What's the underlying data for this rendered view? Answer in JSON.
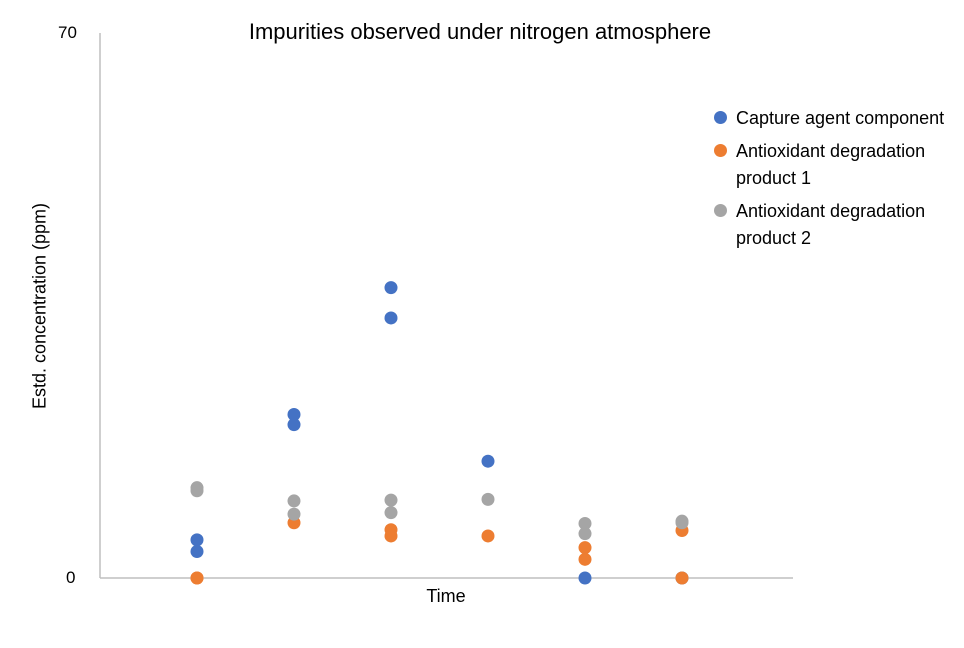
{
  "chart_data": {
    "type": "scatter",
    "title": "Impurities observed under nitrogen atmosphere",
    "xlabel": "Time",
    "ylabel": "Estd. concentration (ppm)",
    "ylim": [
      0,
      70
    ],
    "yticks": [
      "0",
      "70"
    ],
    "x_categories": 6,
    "legend_position": "right",
    "grid": false,
    "series": [
      {
        "name": "Capture agent component",
        "color": "#4472C4",
        "points": [
          [
            1,
            4.9
          ],
          [
            1,
            3.4
          ],
          [
            2,
            21.0
          ],
          [
            2,
            19.7
          ],
          [
            3,
            37.3
          ],
          [
            3,
            33.4
          ],
          [
            4,
            15.0
          ],
          [
            5,
            0
          ],
          [
            6,
            0
          ]
        ]
      },
      {
        "name": "Antioxidant degradation product 1",
        "color": "#ED7D31",
        "points": [
          [
            1,
            0
          ],
          [
            1,
            0
          ],
          [
            2,
            7.1
          ],
          [
            3,
            6.2
          ],
          [
            3,
            5.4
          ],
          [
            4,
            5.4
          ],
          [
            5,
            3.9
          ],
          [
            5,
            2.4
          ],
          [
            6,
            6.1
          ],
          [
            6,
            0
          ]
        ]
      },
      {
        "name": "Antioxidant degradation product 2",
        "color": "#A5A5A5",
        "points": [
          [
            1,
            11.6
          ],
          [
            1,
            11.2
          ],
          [
            2,
            9.9
          ],
          [
            2,
            8.2
          ],
          [
            3,
            10.0
          ],
          [
            3,
            8.4
          ],
          [
            4,
            10.1
          ],
          [
            5,
            7.0
          ],
          [
            5,
            5.7
          ],
          [
            6,
            7.3
          ],
          [
            6,
            7.1
          ]
        ]
      }
    ]
  }
}
